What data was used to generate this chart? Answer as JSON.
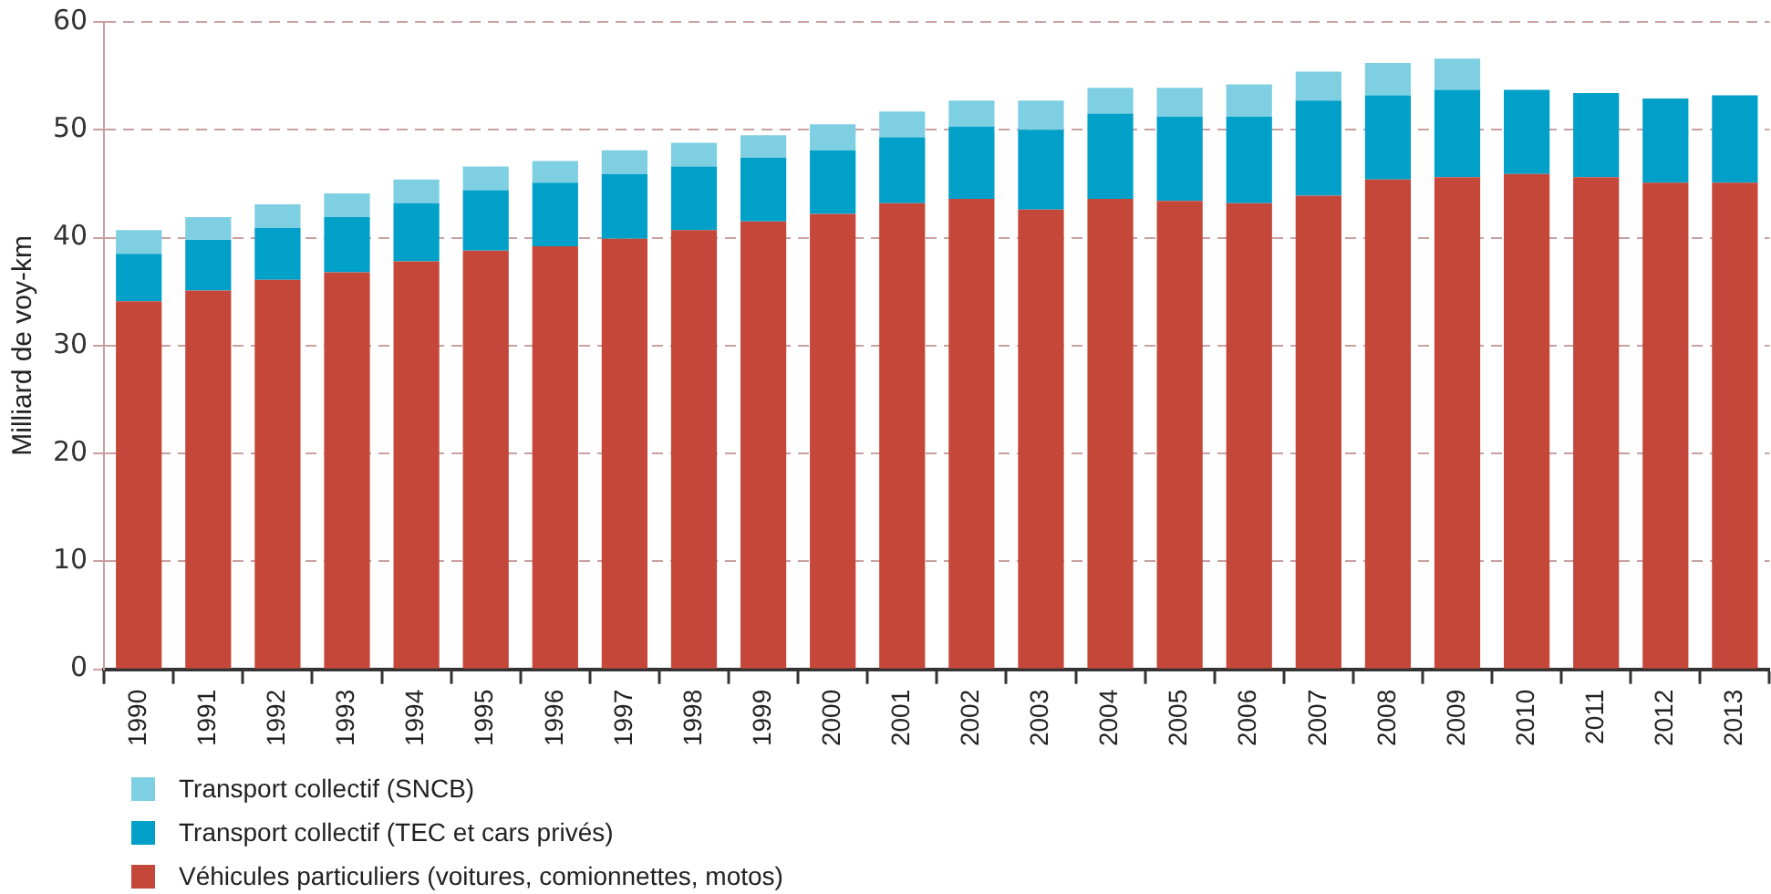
{
  "chart_data": {
    "type": "bar",
    "stacked": true,
    "ylabel": "Milliard de voy-km",
    "categories": [
      "1990",
      "1991",
      "1992",
      "1993",
      "1994",
      "1995",
      "1996",
      "1997",
      "1998",
      "1999",
      "2000",
      "2001",
      "2002",
      "2003",
      "2004",
      "2005",
      "2006",
      "2007",
      "2008",
      "2009",
      "2010",
      "2011",
      "2012",
      "2013"
    ],
    "series": [
      {
        "name": "Véhicules particuliers (voitures, comionnettes, motos)",
        "color": "#c5473a",
        "values": [
          34.1,
          35.1,
          36.1,
          36.8,
          37.8,
          38.8,
          39.2,
          39.9,
          40.7,
          41.5,
          42.2,
          43.2,
          43.6,
          42.6,
          43.6,
          43.4,
          43.2,
          43.9,
          45.4,
          45.6,
          45.9,
          45.6,
          45.1,
          45.1
        ]
      },
      {
        "name": "Transport collectif (TEC et cars privés)",
        "color": "#00a0c8",
        "values": [
          4.4,
          4.7,
          4.8,
          5.1,
          5.4,
          5.6,
          5.9,
          6.0,
          5.9,
          5.9,
          5.9,
          6.1,
          6.7,
          7.4,
          7.9,
          7.8,
          8.0,
          8.8,
          7.8,
          8.1,
          7.8,
          7.8,
          7.8,
          8.1
        ]
      },
      {
        "name": "Transport collectif (SNCB)",
        "color": "#7fcfe3",
        "values": [
          2.2,
          2.1,
          2.2,
          2.2,
          2.2,
          2.2,
          2.0,
          2.2,
          2.2,
          2.1,
          2.4,
          2.4,
          2.4,
          2.7,
          2.4,
          2.7,
          3.0,
          2.7,
          3.0,
          2.9,
          null,
          null,
          null,
          null
        ]
      }
    ],
    "ylim": [
      0,
      60
    ],
    "yticks": [
      0,
      10,
      20,
      30,
      40,
      50,
      60
    ],
    "grid": "y",
    "legend": "bottom"
  }
}
